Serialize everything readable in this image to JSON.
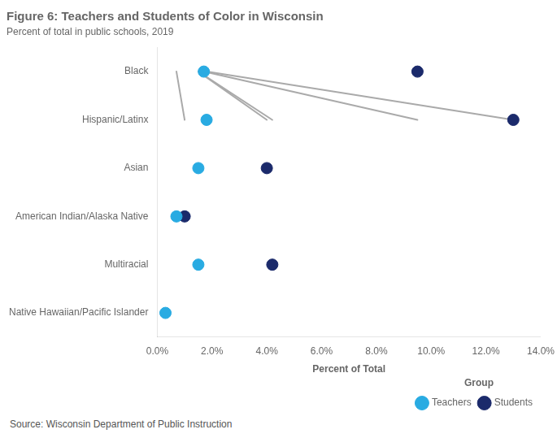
{
  "chart_data": {
    "type": "dumbbell",
    "title": "Figure 6: Teachers and Students of Color in Wisconsin",
    "subtitle": "Percent of total in public schools, 2019",
    "source": "Source: Wisconsin Department of Public Instruction",
    "xlabel": "Percent of Total",
    "orientation": "horizontal",
    "categories": [
      "Black",
      "Hispanic/Latinx",
      "Asian",
      "American Indian/Alaska Native",
      "Multiracial",
      "Native Hawaiian/Pacific Islander"
    ],
    "series": [
      {
        "name": "Teachers",
        "color": "#29ABE2",
        "values": [
          1.7,
          1.8,
          1.5,
          0.7,
          1.5,
          0.3
        ]
      },
      {
        "name": "Students",
        "color": "#1B2A6B",
        "values": [
          9.5,
          13.0,
          4.0,
          1.0,
          4.2,
          null
        ]
      }
    ],
    "color": "#AAAAAA",
    "xlim": [
      0,
      14.0
    ],
    "xticks": [
      {
        "value": 0.0,
        "label": "0.0%"
      },
      {
        "value": 2.0,
        "label": "2.0%"
      },
      {
        "value": 4.0,
        "label": "4.0%"
      },
      {
        "value": 6.0,
        "label": "6.0%"
      },
      {
        "value": 8.0,
        "label": "8.0%"
      },
      {
        "value": 10.0,
        "label": "10.0%"
      },
      {
        "value": 12.0,
        "label": "12.0%"
      },
      {
        "value": 14.0,
        "label": "14.0%"
      }
    ],
    "grid": false,
    "legend": "lower right",
    "legend_title": "Group"
  }
}
